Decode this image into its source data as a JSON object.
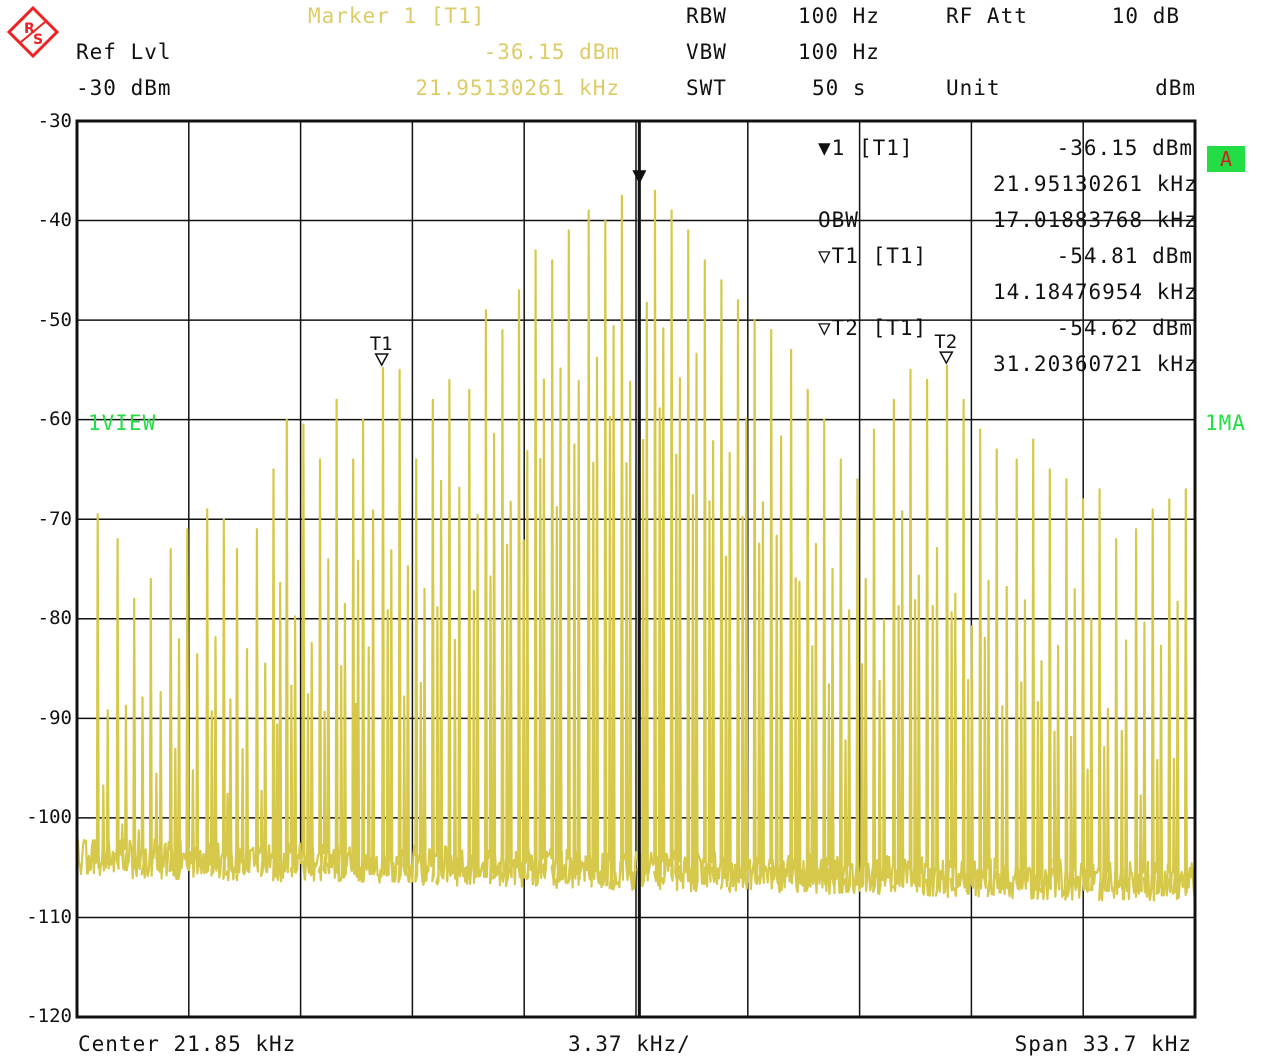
{
  "header": {
    "marker_title": "Marker 1 [T1]",
    "marker_level": "-36.15 dBm",
    "marker_freq": "21.95130261 kHz",
    "ref_lvl_label": "Ref Lvl",
    "ref_lvl_value": "-30 dBm",
    "rbw_label": "RBW",
    "rbw_value": "100 Hz",
    "vbw_label": "VBW",
    "vbw_value": "100 Hz",
    "swt_label": "SWT",
    "swt_value": "50 s",
    "rfatt_label": "RF Att",
    "rfatt_value": "10 dB",
    "unit_label": "Unit",
    "unit_value": "dBm"
  },
  "side": {
    "badge": "A",
    "left_label": "1VIEW",
    "right_label": "1MA"
  },
  "marker_table": {
    "m1_label": "1 [T1]",
    "m1_level": "-36.15 dBm",
    "m1_freq": "21.95130261 kHz",
    "obw_label": "OBW",
    "obw_value": "17.01883768 kHz",
    "t1_label": "T1 [T1]",
    "t1_level": "-54.81 dBm",
    "t1_freq": "14.18476954 kHz",
    "t2_label": "T2 [T1]",
    "t2_level": "-54.62 dBm",
    "t2_freq": "31.20360721 kHz"
  },
  "footer": {
    "center": "Center 21.85 kHz",
    "div": "3.37 kHz/",
    "span": "Span 33.7 kHz"
  },
  "colors": {
    "trace": "#d6c84a",
    "grid": "#111111",
    "badge": "#22dd44",
    "logo": "#ee2222"
  },
  "icons": {
    "logo": "rohde-schwarz-logo-icon",
    "marker": "marker-down-triangle-icon"
  },
  "chart_data": {
    "type": "line",
    "title": "",
    "xlabel": "",
    "ylabel": "",
    "xlim": [
      5.0,
      38.7
    ],
    "ylim": [
      -120,
      -30
    ],
    "x_unit": "kHz",
    "y_unit": "dBm",
    "y_ticks": [
      "-30",
      "-40",
      "-50",
      "-60",
      "-70",
      "-80",
      "-90",
      "-100",
      "-110",
      "-120"
    ],
    "grid": true,
    "noise_floor_dbm": -104,
    "markers": [
      {
        "name": "1",
        "x": 21.95130261,
        "y": -36.15
      },
      {
        "name": "T1",
        "x": 14.18476954,
        "y": -54.81
      },
      {
        "name": "T2",
        "x": 31.20360721,
        "y": -54.62
      }
    ],
    "series": [
      {
        "values_x": [
          5.6,
          6.2,
          6.7,
          7.2,
          7.8,
          8.3,
          8.9,
          9.4,
          9.8,
          10.4,
          10.9,
          11.3,
          11.8,
          12.3,
          12.8,
          13.3,
          13.6,
          14.2,
          14.7,
          15.2,
          15.7,
          16.2,
          16.8,
          17.3,
          17.8,
          18.3,
          18.8,
          19.3,
          19.8,
          20.4,
          20.9,
          21.4,
          21.9,
          22.4,
          22.9,
          23.4,
          23.9,
          24.4,
          24.9,
          25.4,
          25.9,
          26.5,
          27.0,
          27.5,
          28.0,
          28.5,
          29.0,
          29.6,
          30.1,
          30.6,
          31.2,
          31.7,
          32.2,
          32.7,
          33.3,
          33.8,
          34.3,
          34.8,
          35.3,
          35.8,
          36.3,
          36.9,
          37.4,
          37.9,
          38.4
        ],
        "values_y": [
          -69.5,
          -72,
          -78,
          -76,
          -73,
          -71,
          -69,
          -70,
          -73,
          -71,
          -65,
          -60,
          -60.5,
          -64,
          -58,
          -64,
          -60,
          -54.8,
          -55,
          -64,
          -58,
          -56,
          -57,
          -49,
          -51,
          -47,
          -43,
          -44,
          -41,
          -39,
          -40,
          -37.5,
          -36.2,
          -37,
          -39,
          -41,
          -44,
          -46,
          -48,
          -50,
          -51,
          -53,
          -57,
          -60,
          -64,
          -66,
          -61,
          -58,
          -55,
          -56,
          -54.6,
          -58,
          -61,
          -63,
          -64,
          -62,
          -65,
          -66,
          -68,
          -67,
          -72,
          -71,
          -69,
          -68,
          -67
        ]
      }
    ]
  }
}
